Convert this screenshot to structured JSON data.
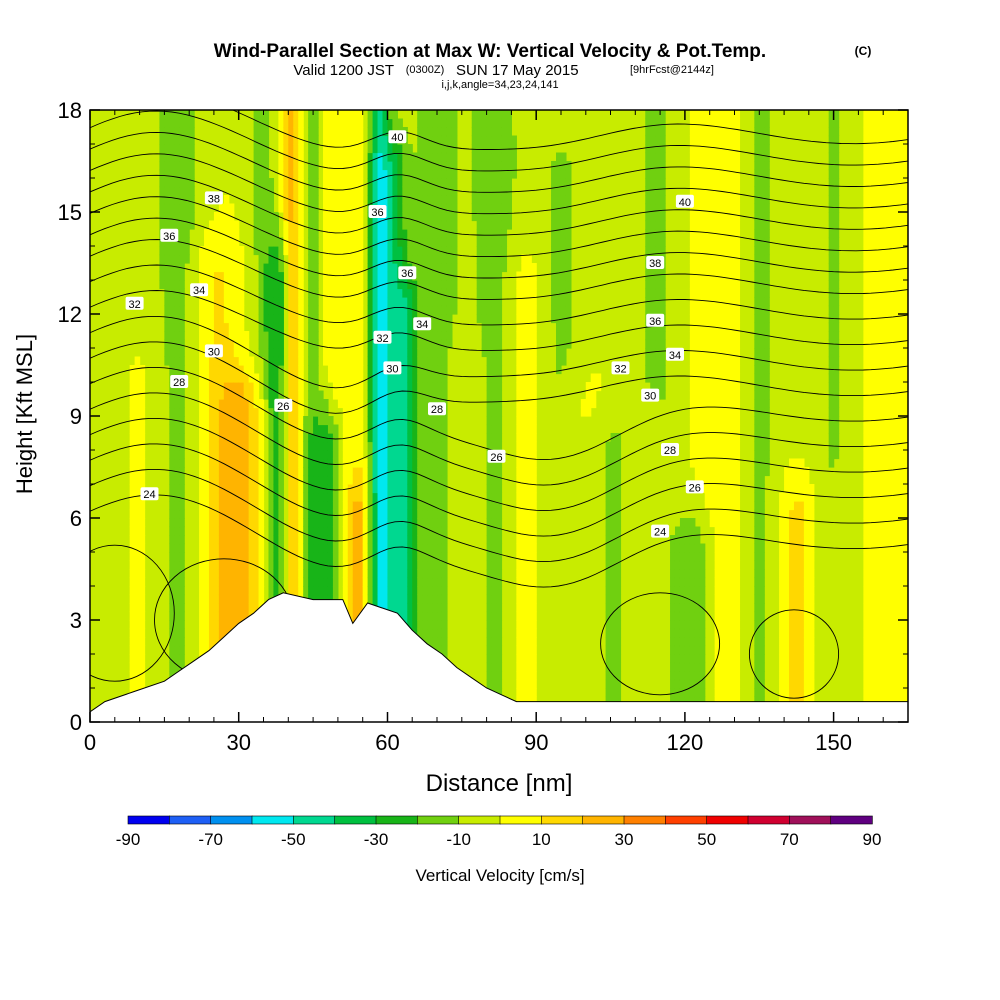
{
  "chart_data": {
    "type": "heatmap",
    "title": "Wind-Parallel Section at Max W: Vertical Velocity & Pot.Temp.",
    "title_mark": "(C)",
    "subtitle_valid": "Valid 1200 JST",
    "subtitle_utc": "(0300Z)",
    "subtitle_date": "SUN 17 May 2015",
    "subtitle_fcst": "[9hrFcst@2144z]",
    "subtitle_indices": "i,j,k,angle=34,23,24,141",
    "xlabel": "Distance [nm]",
    "ylabel": "Height [Kft MSL]",
    "xlim": [
      0,
      165
    ],
    "ylim": [
      0,
      18
    ],
    "x_ticks": [
      0,
      30,
      60,
      90,
      120,
      150
    ],
    "y_ticks": [
      0,
      3,
      6,
      9,
      12,
      15,
      18
    ],
    "colorbar": {
      "label": "Vertical Velocity [cm/s]",
      "bounds": [
        -90,
        90
      ],
      "step": 10,
      "tick_labels": [
        -90,
        -70,
        -50,
        -30,
        -10,
        10,
        30,
        50,
        70,
        90
      ],
      "colors": [
        "#0000f0",
        "#1e5ff5",
        "#0090f0",
        "#00e8f0",
        "#00d890",
        "#00c040",
        "#18b418",
        "#70d010",
        "#c8ec00",
        "#ffff00",
        "#ffd800",
        "#ffb400",
        "#ff8000",
        "#ff4000",
        "#f00000",
        "#d00030",
        "#a0105a",
        "#600080"
      ]
    },
    "velocity_field": {
      "background": 0,
      "columns": [
        {
          "x": 5,
          "w": 7,
          "z": -6,
          "top": 18,
          "a": 0.9
        },
        {
          "x": 10,
          "w": 6,
          "z": 6,
          "top": 10,
          "a": 0.9
        },
        {
          "x": 18,
          "w": 5,
          "z": -16,
          "top": 18,
          "a": 1.0
        },
        {
          "x": 25,
          "w": 6,
          "z": 12,
          "top": 13,
          "a": 1.0
        },
        {
          "x": 31,
          "w": 5,
          "z": 26,
          "top": 9,
          "a": 1.0
        },
        {
          "x": 35,
          "w": 4,
          "z": -12,
          "top": 18,
          "a": 1.0
        },
        {
          "x": 38,
          "w": 2.5,
          "z": -26,
          "top": 13,
          "a": 1.0
        },
        {
          "x": 41,
          "w": 2.4,
          "z": 28,
          "top": 18,
          "a": 1.0
        },
        {
          "x": 44,
          "w": 2.5,
          "z": -18,
          "top": 18,
          "a": 1.0
        },
        {
          "x": 48,
          "w": 3,
          "z": -28,
          "top": 8,
          "a": 1.0
        },
        {
          "x": 50,
          "w": 3,
          "z": 10,
          "top": 18,
          "a": 0.8
        },
        {
          "x": 54,
          "w": 2.5,
          "z": 18,
          "top": 6,
          "a": 1.0
        },
        {
          "x": 56,
          "w": 2.5,
          "z": 14,
          "top": 18,
          "a": 0.7
        },
        {
          "x": 58,
          "w": 2.2,
          "z": -44,
          "top": 18,
          "a": 1.0
        },
        {
          "x": 61,
          "w": 2.8,
          "z": -32,
          "top": 16,
          "a": 1.0
        },
        {
          "x": 64,
          "w": 2.5,
          "z": -24,
          "top": 12,
          "a": 1.0
        },
        {
          "x": 70,
          "w": 6,
          "z": -14,
          "top": 18,
          "a": 1.0
        },
        {
          "x": 76,
          "w": 5,
          "z": 6,
          "top": 10,
          "a": 0.9
        },
        {
          "x": 82,
          "w": 5,
          "z": -16,
          "top": 18,
          "a": 1.0
        },
        {
          "x": 87,
          "w": 5,
          "z": 9,
          "top": 13,
          "a": 0.9
        },
        {
          "x": 95,
          "w": 5,
          "z": -14,
          "top": 16,
          "a": 0.9
        },
        {
          "x": 99,
          "w": 5,
          "z": 9,
          "top": 9,
          "a": 0.9
        },
        {
          "x": 105,
          "w": 5,
          "z": -14,
          "top": 8,
          "a": 0.9
        },
        {
          "x": 112,
          "w": 4,
          "z": 10,
          "top": 8,
          "a": 0.9
        },
        {
          "x": 114,
          "w": 5,
          "z": -14,
          "top": 18,
          "a": 0.9
        },
        {
          "x": 122,
          "w": 4,
          "z": -18,
          "top": 5,
          "a": 0.9
        },
        {
          "x": 128,
          "w": 6,
          "z": 8,
          "top": 18,
          "a": 0.9
        },
        {
          "x": 135,
          "w": 5,
          "z": -14,
          "top": 18,
          "a": 0.9
        },
        {
          "x": 143,
          "w": 4,
          "z": 18,
          "top": 6,
          "a": 0.9
        },
        {
          "x": 150,
          "w": 6,
          "z": -12,
          "top": 18,
          "a": 0.9
        },
        {
          "x": 160,
          "w": 6,
          "z": 8,
          "top": 18,
          "a": 0.9
        }
      ]
    },
    "theta_levels": [
      24,
      25,
      26,
      27,
      28,
      29,
      30,
      31,
      32,
      33,
      34,
      35,
      36,
      37,
      38,
      39,
      40,
      41
    ],
    "theta_labels": [
      {
        "text": "40",
        "x": 62,
        "y": 17.2
      },
      {
        "text": "38",
        "x": 25,
        "y": 15.4
      },
      {
        "text": "40",
        "x": 120,
        "y": 15.3
      },
      {
        "text": "36",
        "x": 58,
        "y": 15.0
      },
      {
        "text": "36",
        "x": 16,
        "y": 14.3
      },
      {
        "text": "38",
        "x": 114,
        "y": 13.5
      },
      {
        "text": "36",
        "x": 64,
        "y": 13.2
      },
      {
        "text": "34",
        "x": 22,
        "y": 12.7
      },
      {
        "text": "32",
        "x": 9,
        "y": 12.3
      },
      {
        "text": "36",
        "x": 114,
        "y": 11.8
      },
      {
        "text": "34",
        "x": 67,
        "y": 11.7
      },
      {
        "text": "32",
        "x": 59,
        "y": 11.3
      },
      {
        "text": "30",
        "x": 25,
        "y": 10.9
      },
      {
        "text": "34",
        "x": 118,
        "y": 10.8
      },
      {
        "text": "30",
        "x": 61,
        "y": 10.4
      },
      {
        "text": "32",
        "x": 107,
        "y": 10.4
      },
      {
        "text": "28",
        "x": 18,
        "y": 10.0
      },
      {
        "text": "30",
        "x": 113,
        "y": 9.6
      },
      {
        "text": "26",
        "x": 39,
        "y": 9.3
      },
      {
        "text": "28",
        "x": 70,
        "y": 9.2
      },
      {
        "text": "28",
        "x": 117,
        "y": 8.0
      },
      {
        "text": "26",
        "x": 82,
        "y": 7.8
      },
      {
        "text": "26",
        "x": 122,
        "y": 6.9
      },
      {
        "text": "24",
        "x": 12,
        "y": 6.7
      },
      {
        "text": "24",
        "x": 115,
        "y": 5.6
      }
    ],
    "terrain": [
      [
        0,
        0.3
      ],
      [
        3,
        0.6
      ],
      [
        9,
        0.9
      ],
      [
        15,
        1.2
      ],
      [
        18,
        1.5
      ],
      [
        21,
        1.8
      ],
      [
        24,
        2.1
      ],
      [
        27,
        2.5
      ],
      [
        30,
        2.9
      ],
      [
        33,
        3.2
      ],
      [
        36,
        3.6
      ],
      [
        39,
        3.8
      ],
      [
        45,
        3.6
      ],
      [
        51,
        3.6
      ],
      [
        53,
        2.9
      ],
      [
        56,
        3.5
      ],
      [
        62,
        3.2
      ],
      [
        65,
        2.7
      ],
      [
        68,
        2.3
      ],
      [
        71,
        2.0
      ],
      [
        74,
        1.6
      ],
      [
        77,
        1.3
      ],
      [
        80,
        1.0
      ],
      [
        83,
        0.8
      ],
      [
        86,
        0.6
      ],
      [
        165,
        0.6
      ]
    ]
  }
}
